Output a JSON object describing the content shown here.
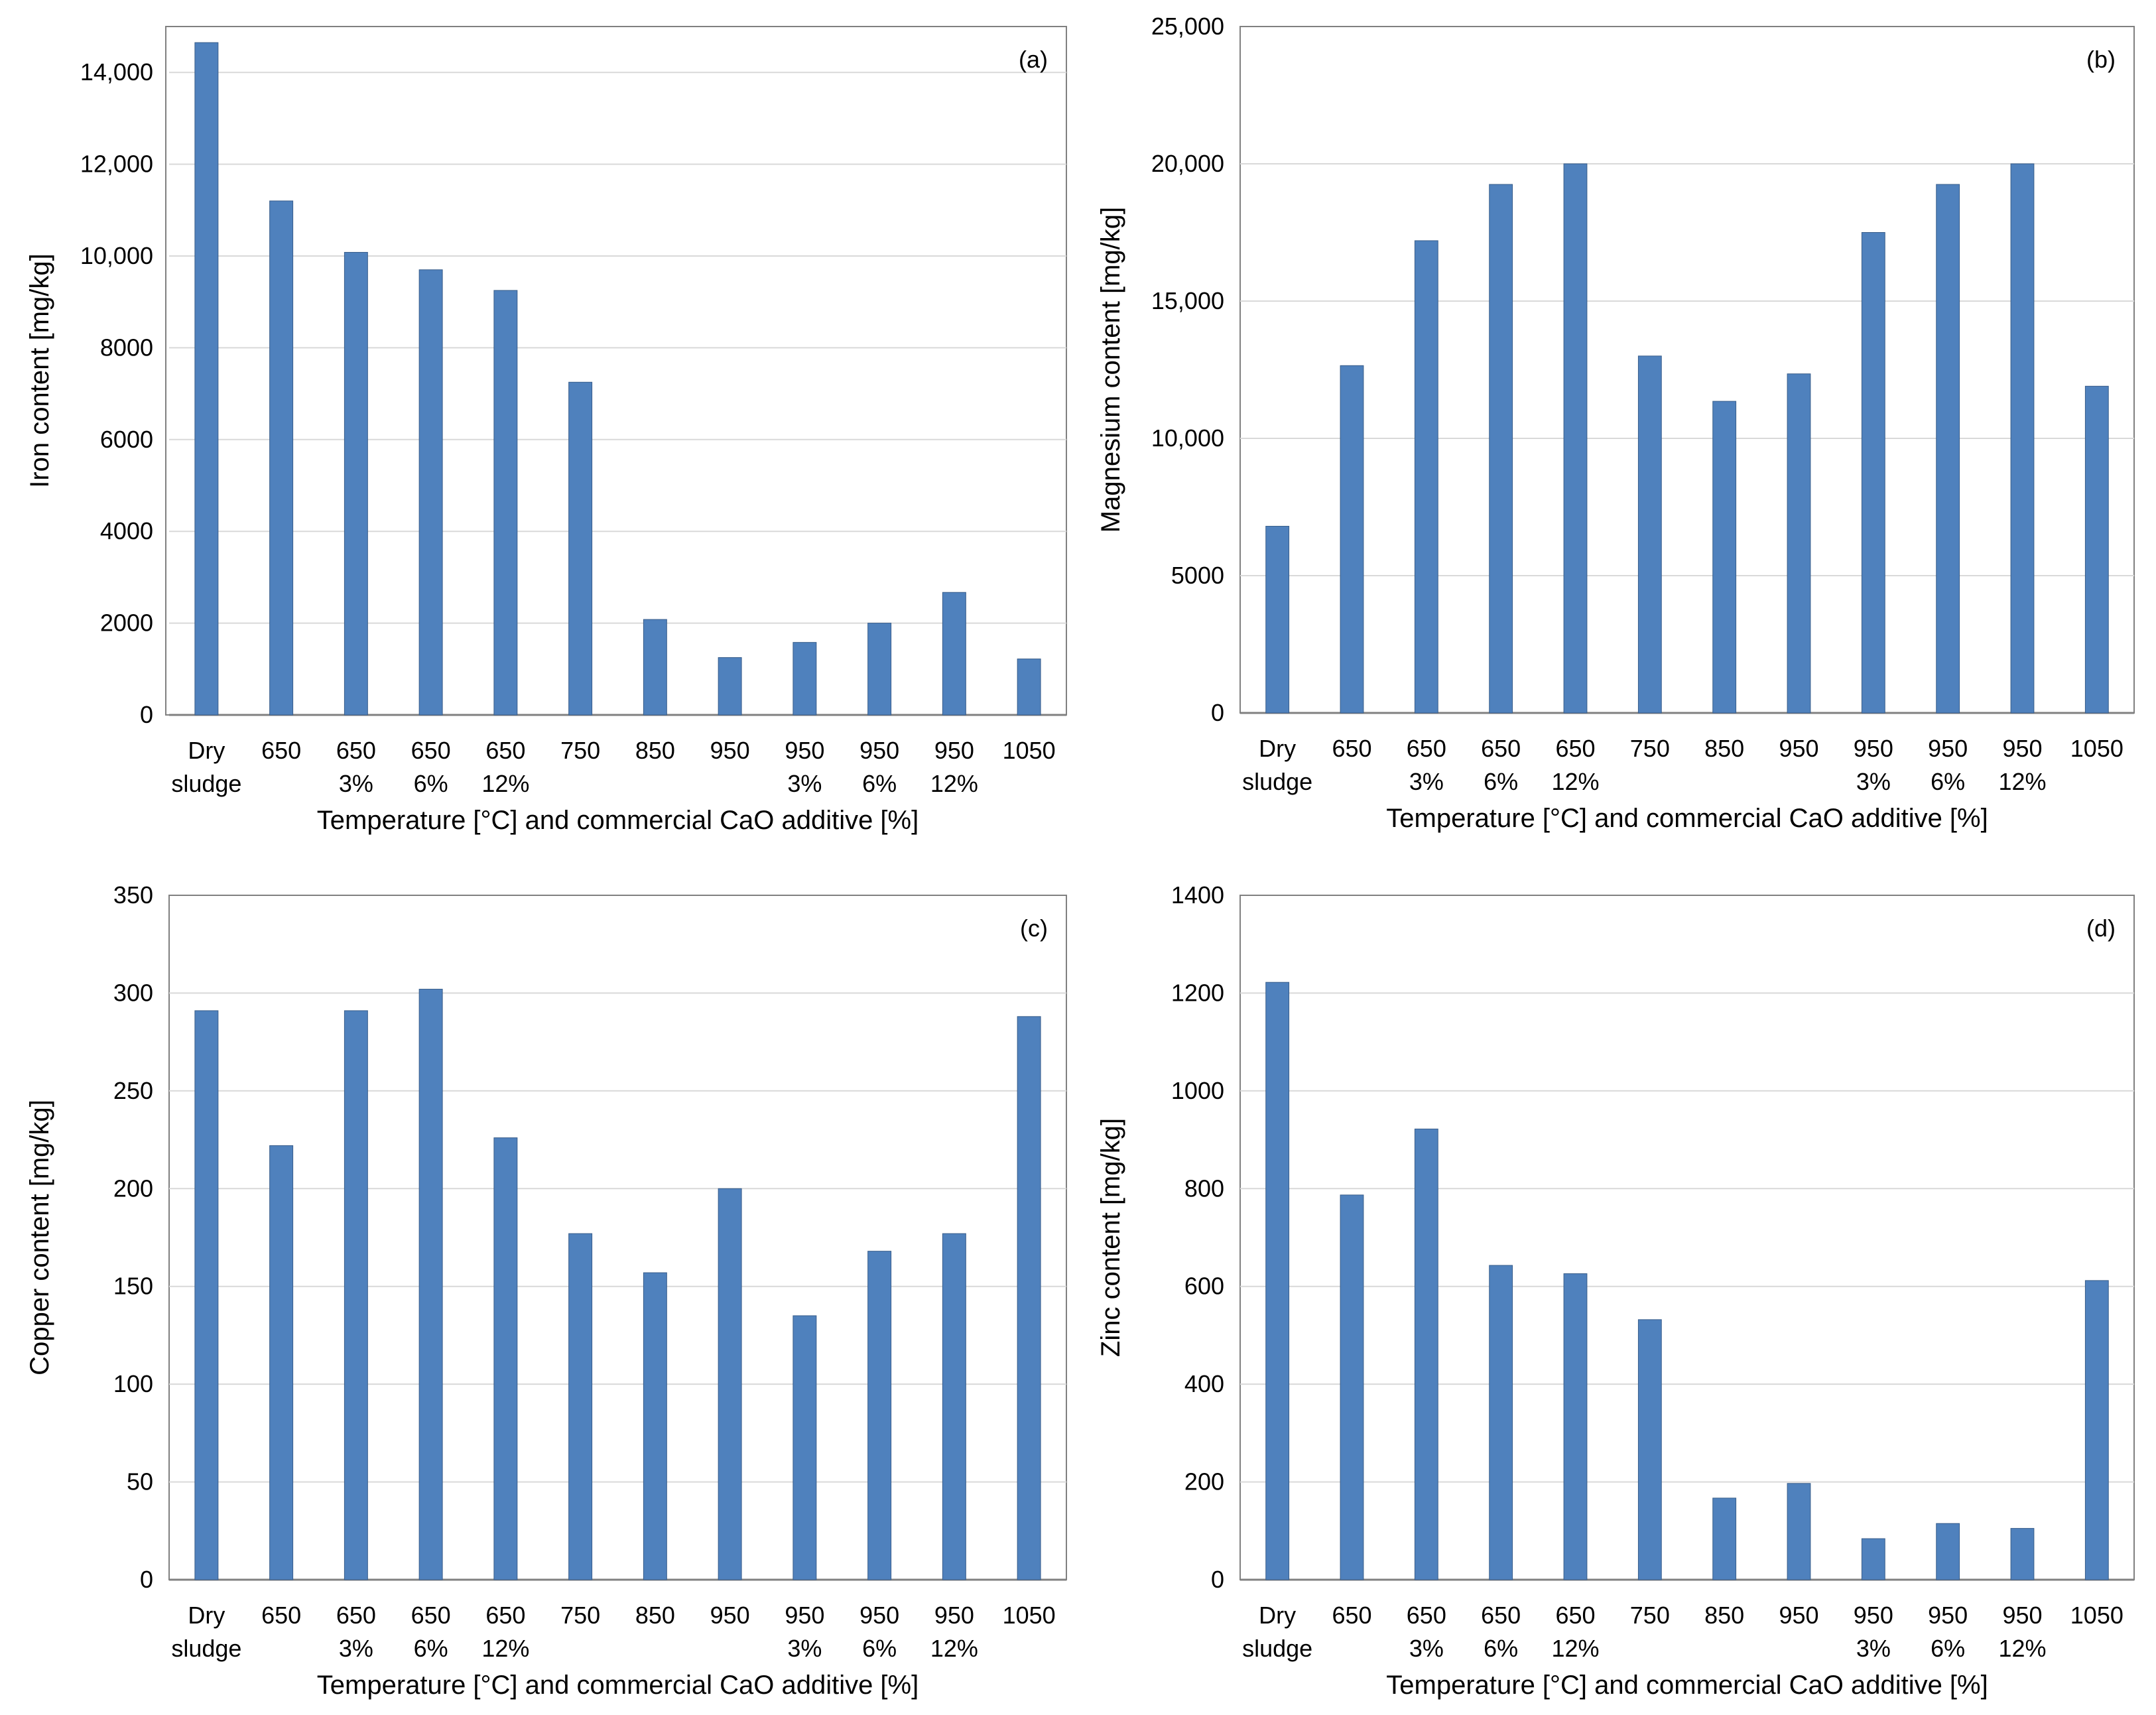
{
  "colors": {
    "bar": "#4f81bd",
    "bar_edge": "#385d8a",
    "grid": "#d9d9d9",
    "axis": "#808080",
    "frame": "#808080"
  },
  "chart_data": [
    {
      "type": "bar",
      "panel_label": "(a)",
      "ylabel": "Iron content [mg/kg]",
      "xlabel": "Temperature [°C] and commercial CaO additive [%]",
      "ylim": [
        0,
        15000
      ],
      "yticks": [
        0,
        2000,
        4000,
        6000,
        8000,
        10000,
        12000,
        14000
      ],
      "ytick_labels": [
        "0",
        "2000",
        "4000",
        "6000",
        "8000",
        "10,000",
        "12,000",
        "14,000"
      ],
      "categories": [
        [
          "Dry",
          "sludge"
        ],
        [
          "650",
          ""
        ],
        [
          "650",
          "3%"
        ],
        [
          "650",
          "6%"
        ],
        [
          "650",
          "12%"
        ],
        [
          "750",
          ""
        ],
        [
          "850",
          ""
        ],
        [
          "950",
          ""
        ],
        [
          "950",
          "3%"
        ],
        [
          "950",
          "6%"
        ],
        [
          "950",
          "12%"
        ],
        [
          "1050",
          ""
        ]
      ],
      "values": [
        14650,
        11200,
        10080,
        9700,
        9250,
        7250,
        2080,
        1250,
        1580,
        2000,
        2670,
        1220
      ]
    },
    {
      "type": "bar",
      "panel_label": "(b)",
      "ylabel": "Magnesium content [mg/kg]",
      "xlabel": "Temperature [°C] and commercial CaO additive [%]",
      "ylim": [
        0,
        25000
      ],
      "yticks": [
        0,
        5000,
        10000,
        15000,
        20000,
        25000
      ],
      "ytick_labels": [
        "0",
        "5000",
        "10,000",
        "15,000",
        "20,000",
        "25,000"
      ],
      "categories": [
        [
          "Dry",
          "sludge"
        ],
        [
          "650",
          ""
        ],
        [
          "650",
          "3%"
        ],
        [
          "650",
          "6%"
        ],
        [
          "650",
          "12%"
        ],
        [
          "750",
          ""
        ],
        [
          "850",
          ""
        ],
        [
          "950",
          ""
        ],
        [
          "950",
          "3%"
        ],
        [
          "950",
          "6%"
        ],
        [
          "950",
          "12%"
        ],
        [
          "1050",
          ""
        ]
      ],
      "values": [
        6800,
        12650,
        17200,
        19250,
        20000,
        13000,
        11350,
        12350,
        17500,
        19250,
        20000,
        11900
      ]
    },
    {
      "type": "bar",
      "panel_label": "(c)",
      "ylabel": "Copper content [mg/kg]",
      "xlabel": "Temperature [°C] and commercial CaO additive [%]",
      "ylim": [
        0,
        350
      ],
      "yticks": [
        0,
        50,
        100,
        150,
        200,
        250,
        300,
        350
      ],
      "ytick_labels": [
        "0",
        "50",
        "100",
        "150",
        "200",
        "250",
        "300",
        "350"
      ],
      "categories": [
        [
          "Dry",
          "sludge"
        ],
        [
          "650",
          ""
        ],
        [
          "650",
          "3%"
        ],
        [
          "650",
          "6%"
        ],
        [
          "650",
          "12%"
        ],
        [
          "750",
          ""
        ],
        [
          "850",
          ""
        ],
        [
          "950",
          ""
        ],
        [
          "950",
          "3%"
        ],
        [
          "950",
          "6%"
        ],
        [
          "950",
          "12%"
        ],
        [
          "1050",
          ""
        ]
      ],
      "values": [
        291,
        222,
        291,
        302,
        226,
        177,
        157,
        200,
        135,
        168,
        177,
        288
      ]
    },
    {
      "type": "bar",
      "panel_label": "(d)",
      "ylabel": "Zinc content [mg/kg]",
      "xlabel": "Temperature [°C] and commercial CaO additive [%]",
      "ylim": [
        0,
        1400
      ],
      "yticks": [
        0,
        200,
        400,
        600,
        800,
        1000,
        1200,
        1400
      ],
      "ytick_labels": [
        "0",
        "200",
        "400",
        "600",
        "800",
        "1000",
        "1200",
        "1400"
      ],
      "categories": [
        [
          "Dry",
          "sludge"
        ],
        [
          "650",
          ""
        ],
        [
          "650",
          "3%"
        ],
        [
          "650",
          "6%"
        ],
        [
          "650",
          "12%"
        ],
        [
          "750",
          ""
        ],
        [
          "850",
          ""
        ],
        [
          "950",
          ""
        ],
        [
          "950",
          "3%"
        ],
        [
          "950",
          "6%"
        ],
        [
          "950",
          "12%"
        ],
        [
          "1050",
          ""
        ]
      ],
      "values": [
        1222,
        787,
        922,
        643,
        626,
        532,
        167,
        197,
        84,
        115,
        105,
        612
      ]
    }
  ]
}
